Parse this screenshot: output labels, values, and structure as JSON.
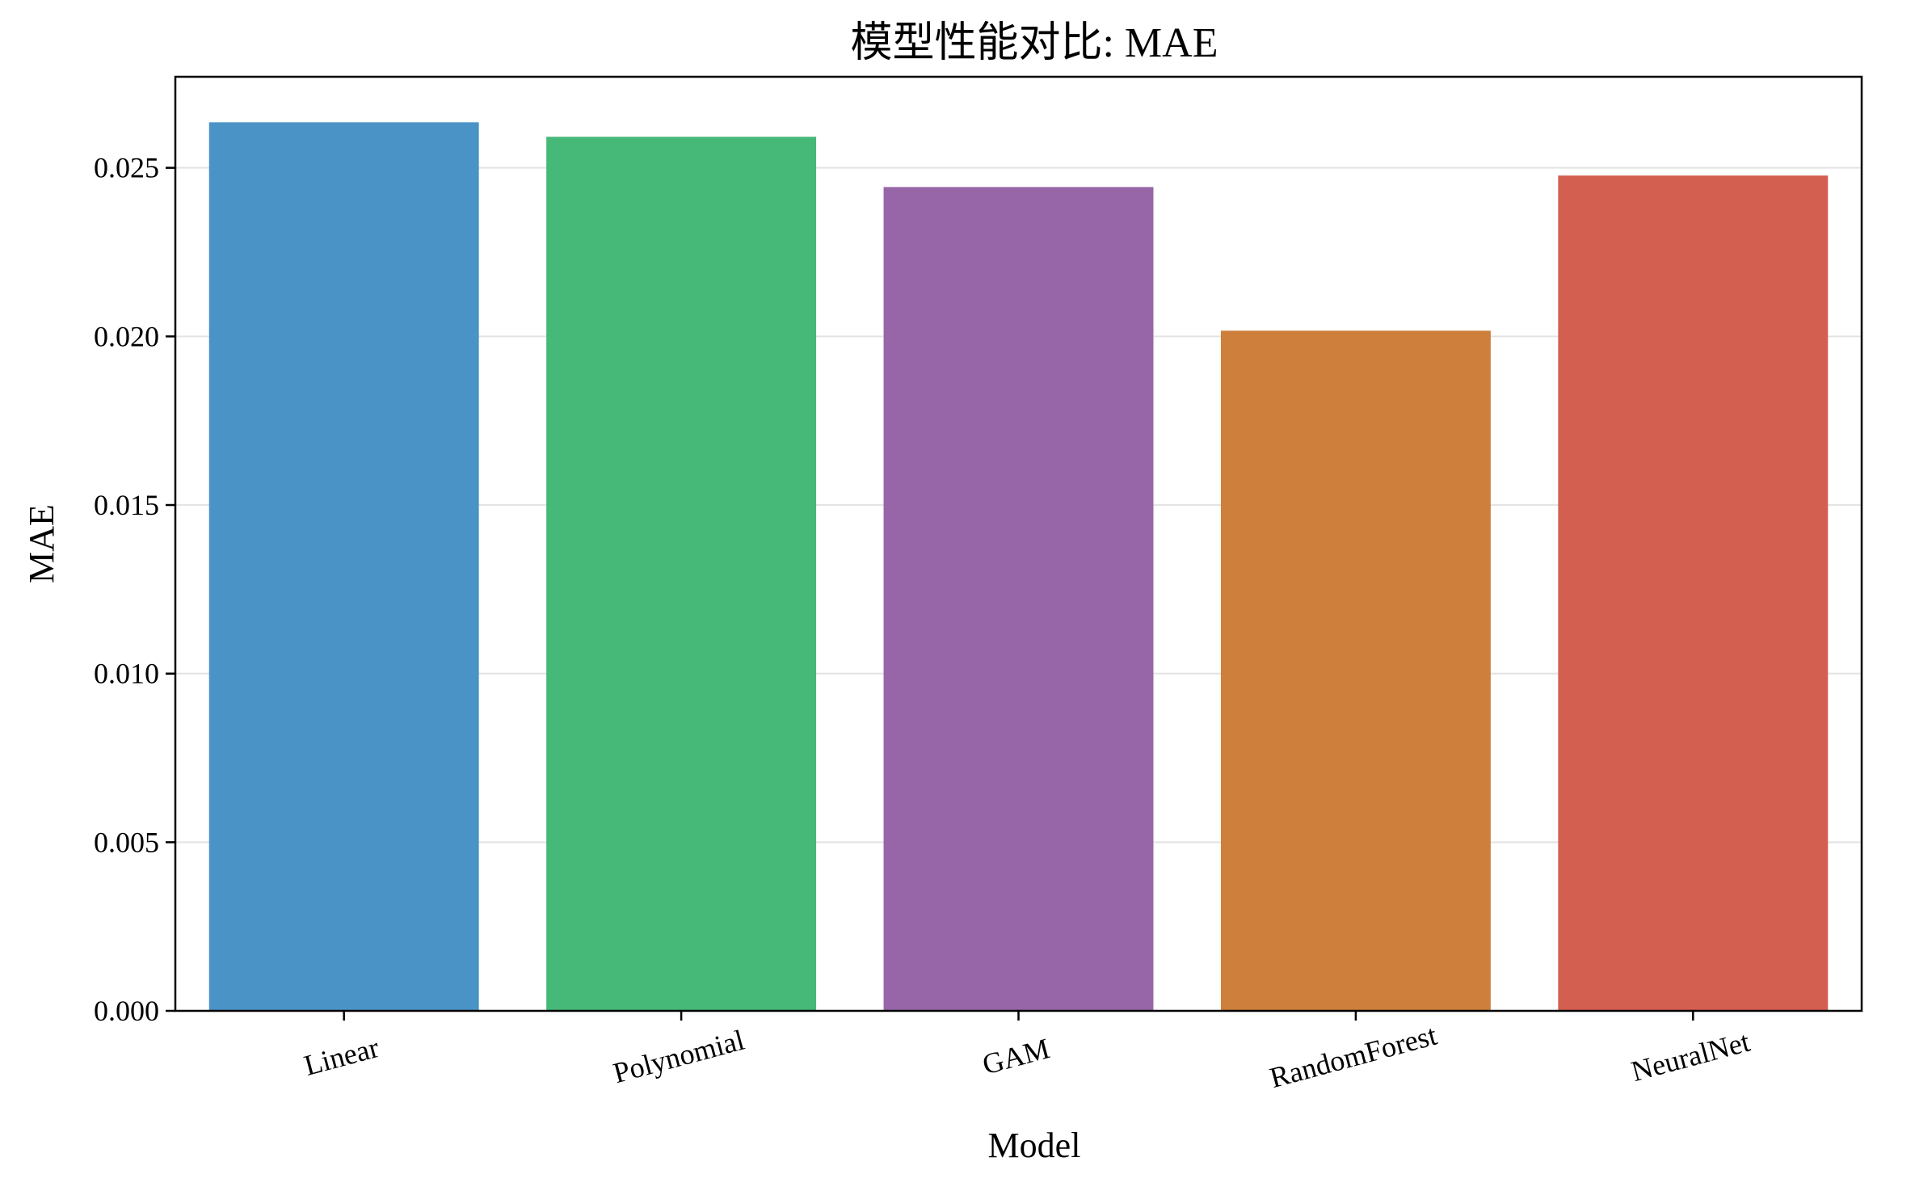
{
  "chart_data": {
    "type": "bar",
    "title": "模型性能对比: MAE",
    "xlabel": "Model",
    "ylabel": "MAE",
    "categories": [
      "Linear",
      "Polynomial",
      "GAM",
      "RandomForest",
      "NeuralNet"
    ],
    "values": [
      0.02635,
      0.02592,
      0.02443,
      0.02017,
      0.02477
    ],
    "colors": [
      "#4a93c6",
      "#46b877",
      "#9666a8",
      "#cd7f3b",
      "#d25f50"
    ],
    "ylim": [
      0,
      0.0277
    ],
    "yticks": [
      0.0,
      0.005,
      0.01,
      0.015,
      0.02,
      0.025
    ],
    "ytick_labels": [
      "0.000",
      "0.005",
      "0.010",
      "0.015",
      "0.020",
      "0.025"
    ],
    "grid": "y-major",
    "legend": "none"
  }
}
